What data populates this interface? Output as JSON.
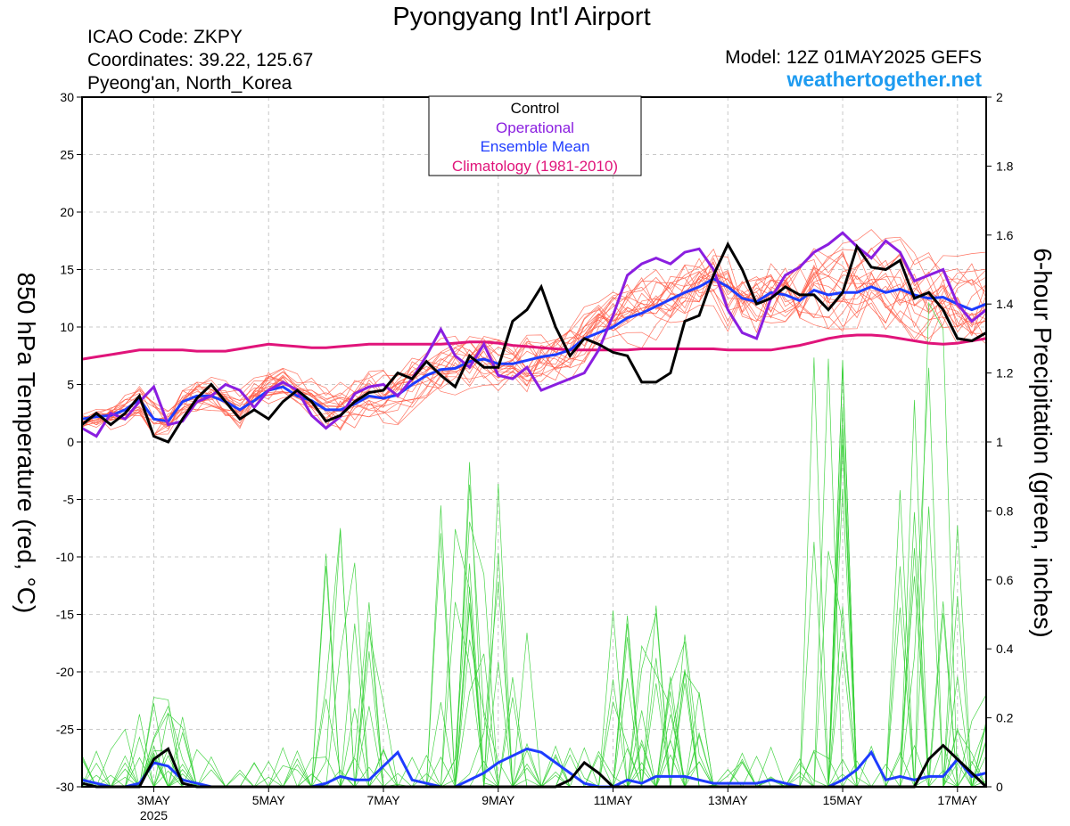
{
  "header": {
    "title": "Pyongyang Int'l Airport",
    "icao": "ICAO Code: ZKPY",
    "coordinates": "Coordinates: 39.22, 125.67",
    "location": "Pyeong'an, North_Korea",
    "model": "Model: 12Z 01MAY2025 GEFS",
    "site": "weathertogether.net"
  },
  "colors": {
    "site": "#1e9bf0",
    "members": "#ff5a45",
    "precip": "#35d035",
    "control": "#000000",
    "operational": "#8a1ee0",
    "mean": "#1e3cff",
    "climatology": "#e0147a"
  },
  "chart_data": {
    "type": "line",
    "xlabel": "",
    "ylabel_left": "850 hPa Temperature (red, °C)",
    "ylabel_right": "6-hour Precipitation (green, inches)",
    "ylim_left": [
      -30,
      30
    ],
    "ylim_right": [
      0,
      2
    ],
    "y_ticks_left": [
      "30",
      "25",
      "20",
      "15",
      "10",
      "5",
      "0",
      "-5",
      "-10",
      "-15",
      "-20",
      "-25",
      "-30"
    ],
    "y_ticks_right": [
      "2",
      "1.8",
      "1.6",
      "1.4",
      "1.2",
      "1",
      "0.8",
      "0.6",
      "0.4",
      "0.2",
      "0"
    ],
    "x_ticks": [
      {
        "label": "3MAY",
        "day": 3
      },
      {
        "label": "5MAY",
        "day": 5
      },
      {
        "label": "7MAY",
        "day": 7
      },
      {
        "label": "9MAY",
        "day": 9
      },
      {
        "label": "11MAY",
        "day": 11
      },
      {
        "label": "13MAY",
        "day": 13
      },
      {
        "label": "15MAY",
        "day": 15
      },
      {
        "label": "17MAY",
        "day": 17
      }
    ],
    "x_year_label": "2025",
    "x_range_days": [
      1.75,
      17.5
    ],
    "legend": {
      "position": "top-center",
      "entries": [
        {
          "label": "Control",
          "color": "#000000"
        },
        {
          "label": "Operational",
          "color": "#8a1ee0"
        },
        {
          "label": "Ensemble Mean",
          "color": "#1e3cff"
        },
        {
          "label": "Climatology (1981-2010)",
          "color": "#e0147a"
        }
      ]
    },
    "temperature": {
      "x_days": [
        1.75,
        2.0,
        2.25,
        2.5,
        2.75,
        3.0,
        3.25,
        3.5,
        3.75,
        4.0,
        4.25,
        4.5,
        4.75,
        5.0,
        5.25,
        5.5,
        5.75,
        6.0,
        6.25,
        6.5,
        6.75,
        7.0,
        7.25,
        7.5,
        7.75,
        8.0,
        8.25,
        8.5,
        8.75,
        9.0,
        9.25,
        9.5,
        9.75,
        10.0,
        10.25,
        10.5,
        10.75,
        11.0,
        11.25,
        11.5,
        11.75,
        12.0,
        12.25,
        12.5,
        12.75,
        13.0,
        13.25,
        13.5,
        13.75,
        14.0,
        14.25,
        14.5,
        14.75,
        15.0,
        15.25,
        15.5,
        15.75,
        16.0,
        16.25,
        16.5,
        16.75,
        17.0,
        17.25,
        17.5
      ],
      "control": [
        1.5,
        2.5,
        1.5,
        2.5,
        4.0,
        0.5,
        0.0,
        2.0,
        3.8,
        5.0,
        3.5,
        2.0,
        2.8,
        2.0,
        3.5,
        4.5,
        3.5,
        1.8,
        2.3,
        3.5,
        4.3,
        4.5,
        6.0,
        5.5,
        7.0,
        5.8,
        4.8,
        7.5,
        6.5,
        6.5,
        10.5,
        11.5,
        13.5,
        10.0,
        7.5,
        9.0,
        8.5,
        7.8,
        7.5,
        5.2,
        5.2,
        6.0,
        10.5,
        11.0,
        14.5,
        17.2,
        15.0,
        12.0,
        12.5,
        13.5,
        12.8,
        12.8,
        11.5,
        13.0,
        17.0,
        15.2,
        15.0,
        15.8,
        12.5,
        13.0,
        11.5,
        9.0,
        8.8,
        9.5
      ],
      "operational": [
        1.2,
        0.5,
        2.5,
        2.0,
        3.5,
        4.8,
        1.5,
        1.8,
        3.5,
        4.0,
        5.0,
        4.5,
        3.0,
        4.5,
        5.2,
        4.5,
        2.3,
        1.2,
        2.2,
        4.2,
        4.8,
        5.0,
        4.0,
        5.5,
        7.5,
        9.8,
        7.5,
        6.5,
        8.5,
        5.8,
        5.5,
        6.5,
        4.5,
        5.0,
        5.5,
        6.0,
        8.0,
        11.0,
        14.5,
        15.5,
        16.0,
        15.5,
        16.5,
        16.8,
        15.0,
        11.5,
        9.5,
        9.0,
        12.5,
        14.5,
        15.2,
        16.5,
        17.2,
        18.2,
        17.0,
        16.0,
        17.5,
        16.5,
        14.0,
        14.5,
        15.0,
        12.0,
        10.5,
        11.5
      ],
      "mean": [
        2.0,
        2.2,
        2.3,
        2.8,
        3.7,
        2.0,
        1.8,
        3.5,
        4.0,
        4.0,
        3.5,
        2.8,
        3.6,
        4.5,
        4.8,
        4.0,
        3.6,
        2.8,
        2.8,
        3.3,
        4.0,
        3.8,
        4.1,
        5.0,
        5.8,
        6.3,
        6.4,
        7.0,
        7.2,
        6.8,
        6.8,
        7.1,
        7.4,
        7.6,
        8.0,
        9.0,
        9.5,
        10.0,
        10.8,
        11.2,
        11.8,
        12.4,
        13.0,
        13.5,
        14.2,
        13.5,
        12.5,
        12.2,
        13.0,
        12.8,
        12.3,
        13.2,
        12.8,
        13.0,
        13.0,
        13.5,
        13.0,
        13.3,
        12.8,
        12.5,
        12.6,
        12.0,
        11.5,
        12.0
      ],
      "climatology": [
        7.2,
        7.4,
        7.6,
        7.8,
        8.0,
        8.0,
        8.0,
        8.0,
        7.9,
        7.9,
        7.9,
        8.1,
        8.3,
        8.5,
        8.4,
        8.3,
        8.2,
        8.2,
        8.3,
        8.4,
        8.5,
        8.5,
        8.5,
        8.5,
        8.5,
        8.5,
        8.6,
        8.7,
        8.7,
        8.6,
        8.4,
        8.3,
        8.2,
        8.1,
        8.0,
        8.0,
        8.0,
        8.0,
        8.0,
        8.1,
        8.1,
        8.1,
        8.1,
        8.1,
        8.1,
        8.0,
        8.0,
        8.0,
        8.0,
        8.2,
        8.4,
        8.7,
        9.0,
        9.2,
        9.3,
        9.3,
        9.2,
        9.0,
        8.8,
        8.6,
        8.5,
        8.6,
        8.8,
        9.0
      ]
    },
    "precipitation": {
      "x_days": [
        1.75,
        2.0,
        2.25,
        2.5,
        2.75,
        3.0,
        3.25,
        3.5,
        3.75,
        4.0,
        4.25,
        4.5,
        4.75,
        5.0,
        5.25,
        5.5,
        5.75,
        6.0,
        6.25,
        6.5,
        6.75,
        7.0,
        7.25,
        7.5,
        7.75,
        8.0,
        8.25,
        8.5,
        8.75,
        9.0,
        9.25,
        9.5,
        9.75,
        10.0,
        10.25,
        10.5,
        10.75,
        11.0,
        11.25,
        11.5,
        11.75,
        12.0,
        12.25,
        12.5,
        12.75,
        13.0,
        13.25,
        13.5,
        13.75,
        14.0,
        14.25,
        14.5,
        14.75,
        15.0,
        15.25,
        15.5,
        15.75,
        16.0,
        16.25,
        16.5,
        16.75,
        17.0,
        17.25,
        17.5
      ],
      "control": [
        0.01,
        0.0,
        0.0,
        0.0,
        0.0,
        0.08,
        0.11,
        0.01,
        0.0,
        0.0,
        0.0,
        0.0,
        0.0,
        0.0,
        0.0,
        0.0,
        0.0,
        0.0,
        0.0,
        0.0,
        0.0,
        0.0,
        0.0,
        0.0,
        0.0,
        0.0,
        0.0,
        0.0,
        0.0,
        0.0,
        0.0,
        0.0,
        0.0,
        0.0,
        0.02,
        0.07,
        0.04,
        0.0,
        0.0,
        0.0,
        0.0,
        0.0,
        0.0,
        0.0,
        0.0,
        0.0,
        0.0,
        0.0,
        0.0,
        0.0,
        0.0,
        0.0,
        0.0,
        0.0,
        0.0,
        0.0,
        0.0,
        0.0,
        0.0,
        0.08,
        0.12,
        0.08,
        0.04,
        0.0
      ],
      "mean": [
        0.02,
        0.01,
        0.0,
        0.0,
        0.01,
        0.07,
        0.06,
        0.02,
        0.01,
        0.0,
        0.0,
        0.0,
        0.0,
        0.0,
        0.0,
        0.0,
        0.0,
        0.01,
        0.03,
        0.02,
        0.02,
        0.06,
        0.1,
        0.02,
        0.01,
        0.0,
        0.0,
        0.02,
        0.04,
        0.07,
        0.09,
        0.11,
        0.1,
        0.07,
        0.04,
        0.01,
        0.0,
        0.0,
        0.02,
        0.01,
        0.03,
        0.03,
        0.03,
        0.02,
        0.01,
        0.01,
        0.01,
        0.01,
        0.02,
        0.01,
        0.0,
        0.0,
        0.0,
        0.02,
        0.05,
        0.1,
        0.02,
        0.03,
        0.02,
        0.03,
        0.03,
        0.08,
        0.03,
        0.04
      ]
    }
  }
}
